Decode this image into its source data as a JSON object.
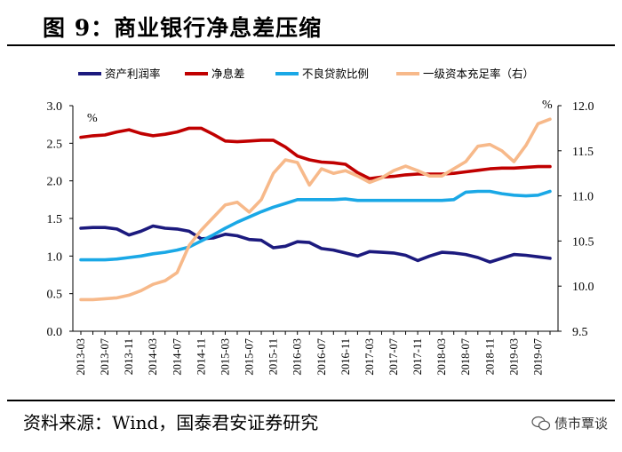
{
  "figure": {
    "title": "图 9：商业银行净息差压缩",
    "source": "资料来源：Wind，国泰君安证券研究",
    "watermark": "债市覃谈"
  },
  "chart_data": {
    "type": "line",
    "title": "图 9：商业银行净息差压缩",
    "categories": [
      "2013-03",
      "2013-07",
      "2013-11",
      "2014-03",
      "2014-07",
      "2014-11",
      "2015-03",
      "2015-07",
      "2015-11",
      "2016-03",
      "2016-07",
      "2016-11",
      "2017-03",
      "2017-07",
      "2017-11",
      "2018-03",
      "2018-07",
      "2018-11",
      "2019-03",
      "2019-07"
    ],
    "x": [
      "2013-03",
      "2013-05",
      "2013-07",
      "2013-09",
      "2013-11",
      "2014-01",
      "2014-03",
      "2014-05",
      "2014-07",
      "2014-09",
      "2014-11",
      "2015-01",
      "2015-03",
      "2015-05",
      "2015-07",
      "2015-09",
      "2015-11",
      "2016-01",
      "2016-03",
      "2016-05",
      "2016-07",
      "2016-09",
      "2016-11",
      "2017-01",
      "2017-03",
      "2017-05",
      "2017-07",
      "2017-09",
      "2017-11",
      "2018-01",
      "2018-03",
      "2018-05",
      "2018-07",
      "2018-09",
      "2018-11",
      "2019-01",
      "2019-03",
      "2019-05",
      "2019-07",
      "2019-09"
    ],
    "left_axis": {
      "unit": "%",
      "ylim": [
        0.0,
        3.0
      ],
      "ticks": [
        "0.0",
        "0.5",
        "1.0",
        "1.5",
        "2.0",
        "2.5",
        "3.0"
      ]
    },
    "right_axis": {
      "unit": "%",
      "ylim": [
        9.5,
        12.0
      ],
      "ticks": [
        "9.5",
        "10.0",
        "10.5",
        "11.0",
        "11.5",
        "12.0"
      ]
    },
    "legend_position": "top",
    "series": [
      {
        "name": "资产利润率",
        "axis": "left",
        "color": "#1c1a7e",
        "values": [
          1.37,
          1.38,
          1.38,
          1.36,
          1.28,
          1.33,
          1.4,
          1.37,
          1.36,
          1.33,
          1.23,
          1.24,
          1.29,
          1.27,
          1.22,
          1.21,
          1.11,
          1.13,
          1.19,
          1.18,
          1.1,
          1.08,
          1.04,
          1.0,
          1.06,
          1.05,
          1.04,
          1.01,
          0.94,
          1.0,
          1.05,
          1.04,
          1.02,
          0.98,
          0.92,
          0.97,
          1.02,
          1.01,
          0.99,
          0.97
        ]
      },
      {
        "name": "净息差",
        "axis": "left",
        "color": "#c00000",
        "values": [
          2.58,
          2.6,
          2.61,
          2.65,
          2.68,
          2.63,
          2.6,
          2.62,
          2.65,
          2.7,
          2.7,
          2.62,
          2.53,
          2.52,
          2.53,
          2.54,
          2.54,
          2.45,
          2.33,
          2.28,
          2.25,
          2.24,
          2.22,
          2.11,
          2.03,
          2.05,
          2.06,
          2.08,
          2.09,
          2.09,
          2.09,
          2.1,
          2.12,
          2.14,
          2.16,
          2.17,
          2.17,
          2.18,
          2.19,
          2.19
        ]
      },
      {
        "name": "不良贷款比例",
        "axis": "left",
        "color": "#1aa8e6",
        "values": [
          0.95,
          0.95,
          0.95,
          0.96,
          0.98,
          1.0,
          1.03,
          1.05,
          1.08,
          1.12,
          1.2,
          1.28,
          1.37,
          1.45,
          1.52,
          1.59,
          1.65,
          1.7,
          1.75,
          1.75,
          1.75,
          1.75,
          1.76,
          1.74,
          1.74,
          1.74,
          1.74,
          1.74,
          1.74,
          1.74,
          1.74,
          1.75,
          1.85,
          1.86,
          1.86,
          1.83,
          1.81,
          1.8,
          1.81,
          1.86
        ]
      },
      {
        "name": "一级资本充足率（右）",
        "axis": "right",
        "color": "#f7b98a",
        "values": [
          9.85,
          9.85,
          9.86,
          9.87,
          9.9,
          9.95,
          10.02,
          10.06,
          10.15,
          10.45,
          10.62,
          10.76,
          10.9,
          10.93,
          10.82,
          10.96,
          11.25,
          11.4,
          11.37,
          11.12,
          11.3,
          11.25,
          11.28,
          11.22,
          11.15,
          11.2,
          11.28,
          11.33,
          11.28,
          11.22,
          11.22,
          11.3,
          11.38,
          11.55,
          11.57,
          11.5,
          11.38,
          11.56,
          11.8,
          11.85
        ]
      }
    ]
  }
}
